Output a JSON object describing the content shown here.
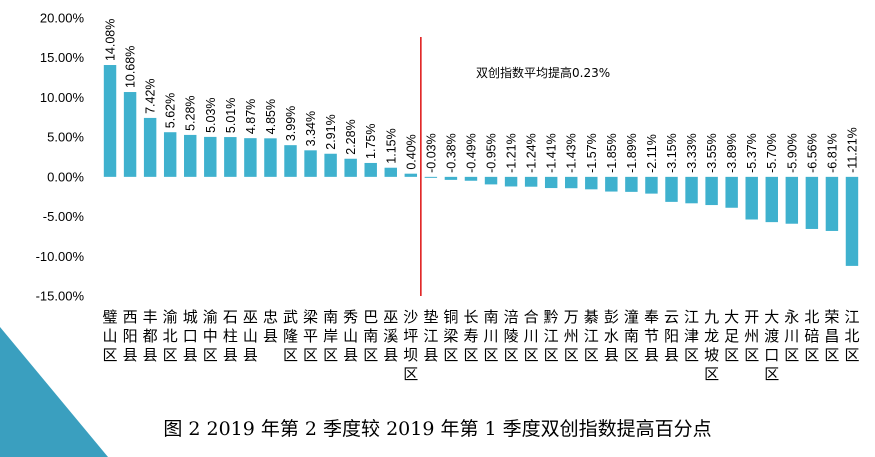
{
  "caption": "图 2 2019 年第 2 季度较 2019 年第 1 季度双创指数提高百分点",
  "colors": {
    "bar": "#3FB1CE",
    "bar_highlight": "#2EA3C4",
    "reference_line": "#E02020",
    "corner": "#3A9FBF"
  },
  "chart_data": {
    "type": "bar",
    "categories": [
      "璧山区",
      "西阳县",
      "丰都县",
      "渝北区",
      "城口县",
      "渝中区",
      "石柱县",
      "巫山县",
      "忠县",
      "武隆区",
      "梁平区",
      "南岸区",
      "秀山县",
      "巴南区",
      "巫溪县",
      "沙坪坝区",
      "垫江县",
      "铜梁区",
      "长寿区",
      "南川区",
      "涪陵区",
      "合川区",
      "黔江区",
      "万州区",
      "綦江区",
      "彭水县",
      "潼南区",
      "奉节县",
      "云阳县",
      "江津区",
      "九龙坡区",
      "大足区",
      "开州区",
      "大渡口区",
      "永川区",
      "北碚区",
      "荣昌区",
      "江北区"
    ],
    "values": [
      14.08,
      10.68,
      7.42,
      5.62,
      5.28,
      5.03,
      5.01,
      4.87,
      4.85,
      3.99,
      3.34,
      2.91,
      2.28,
      1.75,
      1.15,
      0.4,
      -0.03,
      -0.38,
      -0.49,
      -0.95,
      -1.21,
      -1.24,
      -1.41,
      -1.43,
      -1.57,
      -1.85,
      -1.89,
      -2.11,
      -3.15,
      -3.33,
      -3.55,
      -3.89,
      -5.37,
      -5.7,
      -5.9,
      -6.56,
      -6.81,
      -11.21
    ],
    "value_labels": [
      "14.08%",
      "10.68%",
      "7.42%",
      "5.62%",
      "5.28%",
      "5.03%",
      "5.01%",
      "4.87%",
      "4.85%",
      "3.99%",
      "3.34%",
      "2.91%",
      "2.28%",
      "1.75%",
      "1.15%",
      "0.40%",
      "-0.03%",
      "-0.38%",
      "-0.49%",
      "-0.95%",
      "-1.21%",
      "-1.24%",
      "-1.41%",
      "-1.43%",
      "-1.57%",
      "-1.85%",
      "-1.89%",
      "-2.11%",
      "-3.15%",
      "-3.33%",
      "-3.55%",
      "-3.89%",
      "-5.37%",
      "-5.70%",
      "-5.90%",
      "-6.56%",
      "-6.81%",
      "-11.21%"
    ],
    "yticks": [
      20,
      15,
      10,
      5,
      0,
      -5,
      -10,
      -15
    ],
    "ytick_labels": [
      "20.00%",
      "15.00%",
      "10.00%",
      "5.00%",
      "0.00%",
      "-5.00%",
      "-10.00%",
      "-15.00%"
    ],
    "ylim": [
      -15,
      20
    ],
    "title": "",
    "xlabel": "",
    "ylabel": "",
    "grid": false,
    "legend": "none",
    "reference_line": {
      "after_category_index": 15,
      "label": "双创指数平均提高0.23%"
    }
  }
}
